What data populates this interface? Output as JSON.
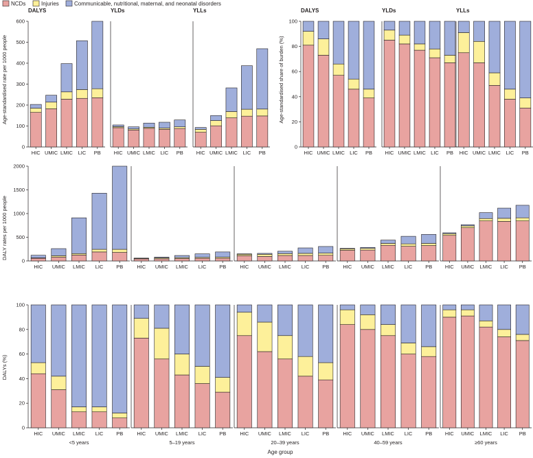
{
  "legend": {
    "items": [
      {
        "label": "NCDs",
        "color": "#e8a3a0"
      },
      {
        "label": "Injuries",
        "color": "#fdf09a"
      },
      {
        "label": "Communicable, nutritional, maternal, and neonatal disorders",
        "color": "#9faedb"
      }
    ]
  },
  "figure": {
    "x_axis_title": "Age group",
    "row1_left_ylabel": "Age-standardised rate per 1000 people",
    "row1_right_ylabel": "Age-standardised share of burden (%)",
    "row2_ylabel": "DALY rates per 1000 people",
    "row3_ylabel": "DALYs (%)",
    "stroke_color": "#231f20"
  },
  "chart_data": [
    {
      "id": "a1",
      "type": "bar",
      "stacked": true,
      "title": "DALYS",
      "categories": [
        "HIC",
        "UMIC",
        "LMIC",
        "LIC",
        "PB"
      ],
      "ylim": [
        0,
        600
      ],
      "yticks": [
        0,
        100,
        200,
        300,
        400,
        500,
        600
      ],
      "series": [
        {
          "name": "NCDs",
          "values": [
            165,
            182,
            228,
            232,
            235
          ]
        },
        {
          "name": "Injuries",
          "values": [
            20,
            32,
            35,
            42,
            43
          ]
        },
        {
          "name": "Communicable, nutritional, maternal, and neonatal disorders",
          "values": [
            18,
            33,
            135,
            233,
            322
          ]
        }
      ]
    },
    {
      "id": "a2",
      "type": "bar",
      "stacked": true,
      "title": "YLDs",
      "categories": [
        "HIC",
        "UMIC",
        "LMIC",
        "LIC",
        "PB"
      ],
      "ylim": [
        0,
        600
      ],
      "yticks": [],
      "series": [
        {
          "name": "NCDs",
          "values": [
            92,
            81,
            89,
            84,
            88
          ]
        },
        {
          "name": "Injuries",
          "values": [
            5,
            5,
            5,
            6,
            8
          ]
        },
        {
          "name": "Communicable, nutritional, maternal, and neonatal disorders",
          "values": [
            8,
            10,
            20,
            28,
            33
          ]
        }
      ]
    },
    {
      "id": "a3",
      "type": "bar",
      "stacked": true,
      "title": "YLLs",
      "categories": [
        "HIC",
        "UMIC",
        "LMIC",
        "LIC",
        "PB"
      ],
      "ylim": [
        0,
        600
      ],
      "yticks": [],
      "series": [
        {
          "name": "NCDs",
          "values": [
            70,
            101,
            139,
            147,
            148
          ]
        },
        {
          "name": "Injuries",
          "values": [
            14,
            25,
            30,
            33,
            33
          ]
        },
        {
          "name": "Communicable, nutritional, maternal, and neonatal disorders",
          "values": [
            9,
            24,
            113,
            208,
            288
          ]
        }
      ]
    },
    {
      "id": "b1",
      "type": "bar",
      "stacked": true,
      "title": "DALYS",
      "categories": [
        "HIC",
        "UMIC",
        "LMIC",
        "LIC",
        "PB"
      ],
      "ylim": [
        0,
        100
      ],
      "yticks": [
        0,
        20,
        40,
        60,
        80,
        100
      ],
      "series": [
        {
          "name": "NCDs",
          "values": [
            81,
            73,
            57,
            46,
            39
          ]
        },
        {
          "name": "Injuries",
          "values": [
            11,
            13,
            9,
            8,
            7
          ]
        },
        {
          "name": "Communicable, nutritional, maternal, and neonatal disorders",
          "values": [
            8,
            14,
            34,
            46,
            54
          ]
        }
      ]
    },
    {
      "id": "b2",
      "type": "bar",
      "stacked": true,
      "title": "YLDs",
      "categories": [
        "HIC",
        "UMIC",
        "LMIC",
        "LIC",
        "PB"
      ],
      "ylim": [
        0,
        100
      ],
      "yticks": [],
      "series": [
        {
          "name": "NCDs",
          "values": [
            85,
            82,
            77,
            71,
            67
          ]
        },
        {
          "name": "Injuries",
          "values": [
            8,
            7,
            5,
            7,
            6
          ]
        },
        {
          "name": "Communicable, nutritional, maternal, and neonatal disorders",
          "values": [
            7,
            11,
            18,
            22,
            27
          ]
        }
      ]
    },
    {
      "id": "b3",
      "type": "bar",
      "stacked": true,
      "title": "YLLs",
      "categories": [
        "HIC",
        "UMIC",
        "LMIC",
        "LIC",
        "PB"
      ],
      "ylim": [
        0,
        100
      ],
      "yticks": [],
      "series": [
        {
          "name": "NCDs",
          "values": [
            75,
            67,
            49,
            38,
            31
          ]
        },
        {
          "name": "Injuries",
          "values": [
            16,
            17,
            10,
            8,
            8
          ]
        },
        {
          "name": "Communicable, nutritional, maternal, and neonatal disorders",
          "values": [
            9,
            16,
            41,
            54,
            61
          ]
        }
      ]
    },
    {
      "id": "c1",
      "type": "bar",
      "stacked": true,
      "title": "<5 years",
      "categories": [
        "HIC",
        "UMIC",
        "LMIC",
        "LIC",
        "PB"
      ],
      "ylim": [
        0,
        2000
      ],
      "yticks": [
        0,
        500,
        1000,
        1500,
        2000
      ],
      "series": [
        {
          "name": "NCDs",
          "values": [
            55,
            80,
            125,
            190,
            180
          ]
        },
        {
          "name": "Injuries",
          "values": [
            10,
            30,
            30,
            55,
            65
          ]
        },
        {
          "name": "Communicable, nutritional, maternal, and neonatal disorders",
          "values": [
            55,
            150,
            755,
            1185,
            1755
          ]
        }
      ]
    },
    {
      "id": "c2",
      "type": "bar",
      "stacked": true,
      "title": "5–19 years",
      "categories": [
        "HIC",
        "UMIC",
        "LMIC",
        "LIC",
        "PB"
      ],
      "ylim": [
        0,
        2000
      ],
      "yticks": [],
      "series": [
        {
          "name": "NCDs",
          "values": [
            45,
            45,
            50,
            55,
            55
          ]
        },
        {
          "name": "Injuries",
          "values": [
            10,
            20,
            20,
            20,
            25
          ]
        },
        {
          "name": "Communicable, nutritional, maternal, and neonatal disorders",
          "values": [
            5,
            15,
            45,
            75,
            110
          ]
        }
      ]
    },
    {
      "id": "c3",
      "type": "bar",
      "stacked": true,
      "title": "20–39 years",
      "categories": [
        "HIC",
        "UMIC",
        "LMIC",
        "LIC",
        "PB"
      ],
      "ylim": [
        0,
        2000
      ],
      "yticks": [],
      "series": [
        {
          "name": "NCDs",
          "values": [
            110,
            95,
            115,
            115,
            120
          ]
        },
        {
          "name": "Injuries",
          "values": [
            30,
            45,
            40,
            45,
            45
          ]
        },
        {
          "name": "Communicable, nutritional, maternal, and neonatal disorders",
          "values": [
            10,
            20,
            50,
            115,
            140
          ]
        }
      ]
    },
    {
      "id": "c4",
      "type": "bar",
      "stacked": true,
      "title": "40–59 years",
      "categories": [
        "HIC",
        "UMIC",
        "LMIC",
        "LIC",
        "PB"
      ],
      "ylim": [
        0,
        2000
      ],
      "yticks": [],
      "series": [
        {
          "name": "NCDs",
          "values": [
            225,
            230,
            330,
            310,
            325
          ]
        },
        {
          "name": "Injuries",
          "values": [
            30,
            35,
            40,
            50,
            45
          ]
        },
        {
          "name": "Communicable, nutritional, maternal, and neonatal disorders",
          "values": [
            10,
            20,
            70,
            160,
            190
          ]
        }
      ]
    },
    {
      "id": "c5",
      "type": "bar",
      "stacked": true,
      "title": "≥60 years",
      "categories": [
        "HIC",
        "UMIC",
        "LMIC",
        "LIC",
        "PB"
      ],
      "ylim": [
        0,
        2000
      ],
      "yticks": [],
      "series": [
        {
          "name": "NCDs",
          "values": [
            540,
            700,
            845,
            835,
            845
          ]
        },
        {
          "name": "Injuries",
          "values": [
            35,
            40,
            50,
            65,
            65
          ]
        },
        {
          "name": "Communicable, nutritional, maternal, and neonatal disorders",
          "values": [
            20,
            25,
            125,
            215,
            265
          ]
        }
      ]
    },
    {
      "id": "d1",
      "type": "bar",
      "stacked": true,
      "title": "<5 years",
      "categories": [
        "HIC",
        "UMIC",
        "LMIC",
        "LIC",
        "PB"
      ],
      "ylim": [
        0,
        100
      ],
      "yticks": [
        0,
        20,
        40,
        60,
        80,
        100
      ],
      "series": [
        {
          "name": "NCDs",
          "values": [
            44,
            31,
            13,
            13,
            8
          ]
        },
        {
          "name": "Injuries",
          "values": [
            9,
            11,
            4,
            4,
            4
          ]
        },
        {
          "name": "Communicable, nutritional, maternal, and neonatal disorders",
          "values": [
            47,
            58,
            83,
            83,
            88
          ]
        }
      ]
    },
    {
      "id": "d2",
      "type": "bar",
      "stacked": true,
      "title": "5–19 years",
      "categories": [
        "HIC",
        "UMIC",
        "LMIC",
        "LIC",
        "PB"
      ],
      "ylim": [
        0,
        100
      ],
      "yticks": [],
      "series": [
        {
          "name": "NCDs",
          "values": [
            73,
            56,
            43,
            36,
            29
          ]
        },
        {
          "name": "Injuries",
          "values": [
            16,
            25,
            17,
            14,
            12
          ]
        },
        {
          "name": "Communicable, nutritional, maternal, and neonatal disorders",
          "values": [
            11,
            19,
            40,
            50,
            59
          ]
        }
      ]
    },
    {
      "id": "d3",
      "type": "bar",
      "stacked": true,
      "title": "20–39 years",
      "categories": [
        "HIC",
        "UMIC",
        "LMIC",
        "LIC",
        "PB"
      ],
      "ylim": [
        0,
        100
      ],
      "yticks": [],
      "series": [
        {
          "name": "NCDs",
          "values": [
            75,
            62,
            56,
            42,
            39
          ]
        },
        {
          "name": "Injuries",
          "values": [
            19,
            24,
            19,
            16,
            14
          ]
        },
        {
          "name": "Communicable, nutritional, maternal, and neonatal disorders",
          "values": [
            6,
            14,
            25,
            42,
            47
          ]
        }
      ]
    },
    {
      "id": "d4",
      "type": "bar",
      "stacked": true,
      "title": "40–59 years",
      "categories": [
        "HIC",
        "UMIC",
        "LMIC",
        "LIC",
        "PB"
      ],
      "ylim": [
        0,
        100
      ],
      "yticks": [],
      "series": [
        {
          "name": "NCDs",
          "values": [
            84,
            80,
            75,
            60,
            58
          ]
        },
        {
          "name": "Injuries",
          "values": [
            12,
            12,
            9,
            9,
            8
          ]
        },
        {
          "name": "Communicable, nutritional, maternal, and neonatal disorders",
          "values": [
            4,
            8,
            16,
            31,
            34
          ]
        }
      ]
    },
    {
      "id": "d5",
      "type": "bar",
      "stacked": true,
      "title": "≥60 years",
      "categories": [
        "HIC",
        "UMIC",
        "LMIC",
        "LIC",
        "PB"
      ],
      "ylim": [
        0,
        100
      ],
      "yticks": [],
      "series": [
        {
          "name": "NCDs",
          "values": [
            90,
            91,
            82,
            74,
            71
          ]
        },
        {
          "name": "Injuries",
          "values": [
            6,
            5,
            5,
            6,
            5
          ]
        },
        {
          "name": "Communicable, nutritional, maternal, and neonatal disorders",
          "values": [
            4,
            4,
            13,
            20,
            24
          ]
        }
      ]
    }
  ]
}
